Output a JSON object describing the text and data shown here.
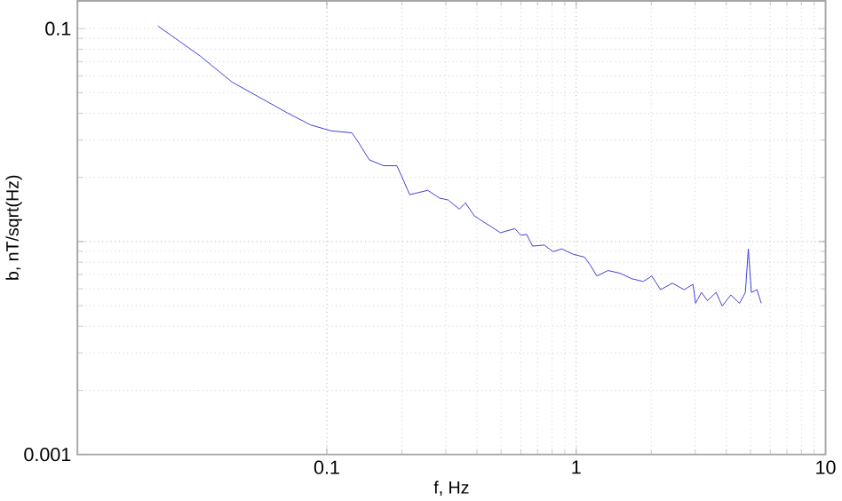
{
  "chart_data": {
    "type": "line",
    "xlabel": "f, Hz",
    "ylabel": "b, nT/sqrt(Hz)",
    "log": "xy",
    "grid": true,
    "xlim": [
      0.01,
      10
    ],
    "ylim": [
      0.001,
      0.135
    ],
    "xticks": [
      0.1,
      1,
      10
    ],
    "yticks": [
      0.001,
      {
        "value": 0.01,
        "label": null
      },
      0.1
    ],
    "series": [
      {
        "color": "#3c3cdc",
        "x": [
          0.021,
          0.031,
          0.0417,
          0.0531,
          0.0695,
          0.0861,
          0.104,
          0.126,
          0.133,
          0.148,
          0.169,
          0.191,
          0.199,
          0.215,
          0.254,
          0.283,
          0.306,
          0.34,
          0.36,
          0.39,
          0.497,
          0.568,
          0.6,
          0.633,
          0.668,
          0.745,
          0.807,
          0.875,
          0.973,
          1.08,
          1.14,
          1.21,
          1.34,
          1.5,
          1.67,
          1.86,
          2.01,
          2.18,
          2.43,
          2.71,
          2.94,
          3.01,
          3.18,
          3.36,
          3.64,
          3.85,
          4.17,
          4.52,
          4.77,
          4.9,
          5.04,
          5.31,
          5.52
        ],
        "values": [
          0.103,
          0.0745,
          0.0561,
          0.0479,
          0.0402,
          0.0353,
          0.0331,
          0.0324,
          0.0296,
          0.0242,
          0.0227,
          0.0227,
          0.0204,
          0.0166,
          0.0174,
          0.016,
          0.0157,
          0.0142,
          0.0152,
          0.0132,
          0.011,
          0.0115,
          0.0107,
          0.0108,
          0.00952,
          0.00962,
          0.00896,
          0.00924,
          0.00871,
          0.00845,
          0.00774,
          0.00689,
          0.00731,
          0.0071,
          0.00669,
          0.00649,
          0.00689,
          0.00594,
          0.00638,
          0.00594,
          0.0063,
          0.00513,
          0.00577,
          0.00528,
          0.00577,
          0.00498,
          0.00561,
          0.00513,
          0.00577,
          0.00924,
          0.00577,
          0.00594,
          0.00513
        ]
      }
    ]
  }
}
